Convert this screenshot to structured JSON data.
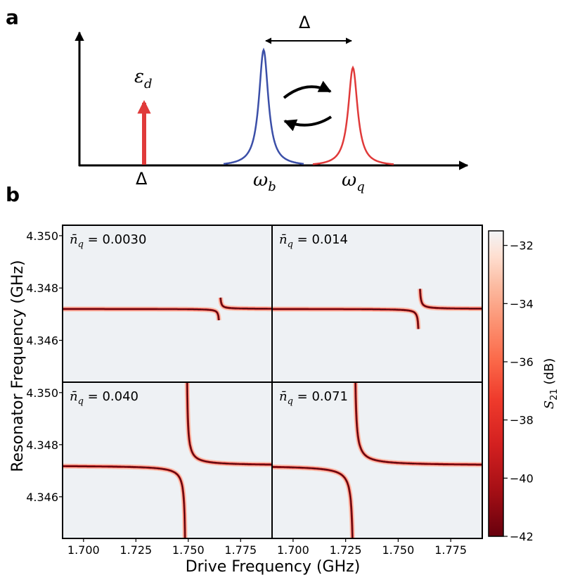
{
  "panel_a": {
    "label": "a",
    "delta_top": "Δ",
    "drive_label_sym": "ε",
    "drive_label_sub": "d",
    "drive_axis_label": "Δ",
    "omega_b_sym": "ω",
    "omega_b_sub": "b",
    "omega_q_sym": "ω",
    "omega_q_sub": "q",
    "colors": {
      "drive": "#e03a3a",
      "b_peak": "#3b4fa8",
      "q_peak": "#e03a3a"
    }
  },
  "panel_b": {
    "label": "b"
  },
  "chart_data": {
    "type": "heatmap",
    "xlabel": "Drive Frequency (GHz)",
    "ylabel": "Resonator Frequency (GHz)",
    "xlim": [
      1.69,
      1.79
    ],
    "ylim": [
      4.3444,
      4.3504
    ],
    "x_ticks": [
      "1.700",
      "1.725",
      "1.750",
      "1.775"
    ],
    "x_tick_values": [
      1.7,
      1.725,
      1.75,
      1.775
    ],
    "y_ticks": [
      "4.346",
      "4.348",
      "4.350"
    ],
    "y_tick_values": [
      4.346,
      4.348,
      4.35
    ],
    "colorbar": {
      "label_sym": "S",
      "label_sub": "21",
      "label_unit": " (dB)",
      "range": [
        -42,
        -31.5
      ],
      "ticks": [
        "−32",
        "−34",
        "−36",
        "−38",
        "−40",
        "−42"
      ],
      "tick_values": [
        -32,
        -34,
        -36,
        -38,
        -40,
        -42
      ],
      "colormap": "Reds_r"
    },
    "panels": [
      {
        "label_pre": "n̄",
        "label_sub": "q",
        "label_value": " = 0.0030",
        "crossing_x": 1.765,
        "resonator": 4.3472,
        "g": 0.0012
      },
      {
        "label_pre": "n̄",
        "label_sub": "q",
        "label_value": " = 0.014",
        "crossing_x": 1.76,
        "resonator": 4.3472,
        "g": 0.0016
      },
      {
        "label_pre": "n̄",
        "label_sub": "q",
        "label_value": " = 0.040",
        "crossing_x": 1.749,
        "resonator": 4.3472,
        "g": 0.0035
      },
      {
        "label_pre": "n̄",
        "label_sub": "q",
        "label_value": " = 0.071",
        "crossing_x": 1.729,
        "resonator": 4.3472,
        "g": 0.0042
      }
    ]
  }
}
